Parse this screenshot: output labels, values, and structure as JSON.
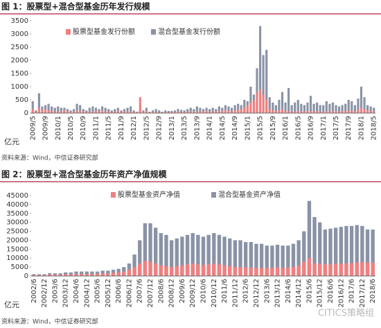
{
  "chart_data": [
    {
      "type": "bar",
      "title": "图 1：股票型+混合型基金历年发行规模",
      "y_label": "亿元",
      "source": "资料来源：Wind，中信证券研究部",
      "categories": [
        "2009/5",
        null,
        null,
        null,
        "2009/9",
        null,
        null,
        null,
        "2010/1",
        null,
        null,
        null,
        "2010/5",
        null,
        null,
        null,
        "2010/9",
        null,
        null,
        null,
        "2011/1",
        null,
        null,
        null,
        "2011/5",
        null,
        null,
        null,
        "2011/9",
        null,
        null,
        null,
        "2012/1",
        null,
        null,
        null,
        "2012/5",
        null,
        null,
        null,
        "2012/9",
        null,
        null,
        null,
        "2013/1",
        null,
        null,
        null,
        "2013/5",
        null,
        null,
        null,
        "2013/9",
        null,
        null,
        null,
        "2014/1",
        null,
        null,
        null,
        "2014/5",
        null,
        null,
        null,
        "2014/9",
        null,
        null,
        null,
        "2015/1",
        null,
        null,
        null,
        "2015/5",
        null,
        null,
        null,
        "2015/9",
        null,
        null,
        null,
        "2016/1",
        null,
        null,
        null,
        "2016/5",
        null,
        null,
        null,
        "2016/9",
        null,
        null,
        null,
        "2017/1",
        null,
        null,
        null,
        "2017/5",
        null,
        null,
        null,
        "2017/9",
        null,
        null,
        null,
        "2018/1",
        null,
        null,
        null,
        "2018/5"
      ],
      "series": [
        {
          "name": "股票型基金发行份额",
          "color": "#f08080",
          "values": [
            150,
            50,
            200,
            100,
            150,
            100,
            80,
            60,
            50,
            80,
            100,
            60,
            40,
            50,
            100,
            80,
            50,
            40,
            60,
            50,
            80,
            60,
            100,
            50,
            60,
            40,
            50,
            80,
            40,
            60,
            50,
            60,
            40,
            30,
            600,
            50,
            80,
            20,
            40,
            30,
            40,
            20,
            30,
            30,
            30,
            40,
            50,
            40,
            30,
            50,
            60,
            40,
            50,
            60,
            50,
            80,
            50,
            60,
            40,
            80,
            60,
            100,
            80,
            60,
            100,
            120,
            150,
            200,
            300,
            400,
            500,
            800,
            900,
            700,
            500,
            150,
            100,
            80,
            100,
            150,
            80,
            60,
            50,
            60,
            80,
            50,
            60,
            70,
            80,
            60,
            70,
            50,
            50,
            60,
            50,
            70,
            60,
            50,
            60,
            80,
            100,
            80,
            60,
            120,
            200,
            150,
            100,
            80,
            60
          ]
        },
        {
          "name": "混合型基金发行份额",
          "color": "#8a93a6",
          "values": [
            450,
            100,
            750,
            250,
            300,
            350,
            250,
            200,
            250,
            200,
            200,
            150,
            100,
            150,
            350,
            300,
            150,
            100,
            200,
            250,
            200,
            150,
            250,
            200,
            150,
            100,
            150,
            200,
            100,
            150,
            200,
            250,
            100,
            50,
            150,
            100,
            200,
            50,
            100,
            150,
            100,
            50,
            100,
            80,
            80,
            100,
            150,
            120,
            100,
            150,
            200,
            150,
            250,
            200,
            150,
            200,
            150,
            200,
            150,
            250,
            200,
            300,
            250,
            200,
            300,
            350,
            300,
            500,
            450,
            1000,
            700,
            1700,
            3300,
            2200,
            2400,
            600,
            400,
            300,
            500,
            800,
            400,
            950,
            300,
            400,
            500,
            350,
            300,
            400,
            650,
            350,
            400,
            300,
            300,
            450,
            350,
            400,
            300,
            250,
            300,
            350,
            500,
            450,
            300,
            550,
            1000,
            600,
            300,
            250,
            200
          ]
        }
      ],
      "ylim": [
        0,
        3500
      ],
      "yticks": [
        0,
        500,
        1000,
        1500,
        2000,
        2500,
        3000,
        3500
      ],
      "legend": "top"
    },
    {
      "type": "bar",
      "title": "图 2：股票型+混合型基金历年资产净值规模",
      "y_label": "亿元",
      "source": "资料来源：Wind，中信证券研究部",
      "categories": [
        "2002/6",
        null,
        "2002/12",
        null,
        "2003/6",
        null,
        "2003/12",
        null,
        "2004/6",
        null,
        "2004/12",
        null,
        "2005/6",
        null,
        "2005/12",
        null,
        "2006/6",
        null,
        "2006/12",
        null,
        "2007/6",
        null,
        "2007/12",
        null,
        "2008/6",
        null,
        "2008/12",
        null,
        "2009/6",
        null,
        "2009/12",
        null,
        "2010/6",
        null,
        "2010/12",
        null,
        "2011/6",
        null,
        "2011/12",
        null,
        "2012/6",
        null,
        "2012/12",
        null,
        "2013/6",
        null,
        "2013/12",
        null,
        "2014/6",
        null,
        "2014/12",
        null,
        "2015/6",
        null,
        "2015/12",
        null,
        "2016/6",
        null,
        "2016/12",
        null,
        "2017/6",
        null,
        "2017/12",
        null,
        "2018/6"
      ],
      "series": [
        {
          "name": "股票型基金资产净值",
          "color": "#f08080",
          "values": [
            500,
            500,
            500,
            800,
            800,
            800,
            1000,
            1000,
            1200,
            1200,
            1200,
            1300,
            1300,
            1500,
            1500,
            1800,
            2000,
            2500,
            3500,
            5000,
            7000,
            8500,
            8000,
            7000,
            6000,
            5500,
            5000,
            5500,
            6000,
            6500,
            7000,
            6500,
            6000,
            6500,
            7000,
            6500,
            6000,
            5500,
            5000,
            5000,
            4800,
            4800,
            4500,
            4500,
            4500,
            4500,
            4800,
            4500,
            4800,
            5000,
            6000,
            8000,
            10000,
            7000,
            7000,
            6500,
            6500,
            6800,
            7000,
            7000,
            7200,
            7500,
            7800,
            7500,
            7500
          ]
        },
        {
          "name": "混合型基金资产净值",
          "color": "#8a93a6",
          "values": [
            1000,
            1000,
            1000,
            1500,
            1500,
            1500,
            2000,
            2000,
            2500,
            2500,
            2500,
            2500,
            2500,
            3000,
            3000,
            3500,
            4000,
            5000,
            7000,
            12000,
            20000,
            29500,
            29500,
            27000,
            24000,
            23000,
            20000,
            21000,
            22000,
            23000,
            24000,
            23000,
            22000,
            23000,
            24000,
            23000,
            22000,
            21000,
            20000,
            20000,
            19000,
            19000,
            18000,
            18000,
            17000,
            17000,
            17500,
            17000,
            17000,
            18000,
            20000,
            25000,
            42000,
            33000,
            30000,
            26000,
            26500,
            27000,
            27500,
            28000,
            28000,
            28500,
            28000,
            26000,
            26000
          ]
        }
      ],
      "ylim": [
        0,
        45000
      ],
      "yticks": [
        0,
        5000,
        10000,
        15000,
        20000,
        25000,
        30000,
        35000,
        40000,
        45000
      ],
      "legend": "top"
    }
  ],
  "watermark": "CITICS策略组"
}
